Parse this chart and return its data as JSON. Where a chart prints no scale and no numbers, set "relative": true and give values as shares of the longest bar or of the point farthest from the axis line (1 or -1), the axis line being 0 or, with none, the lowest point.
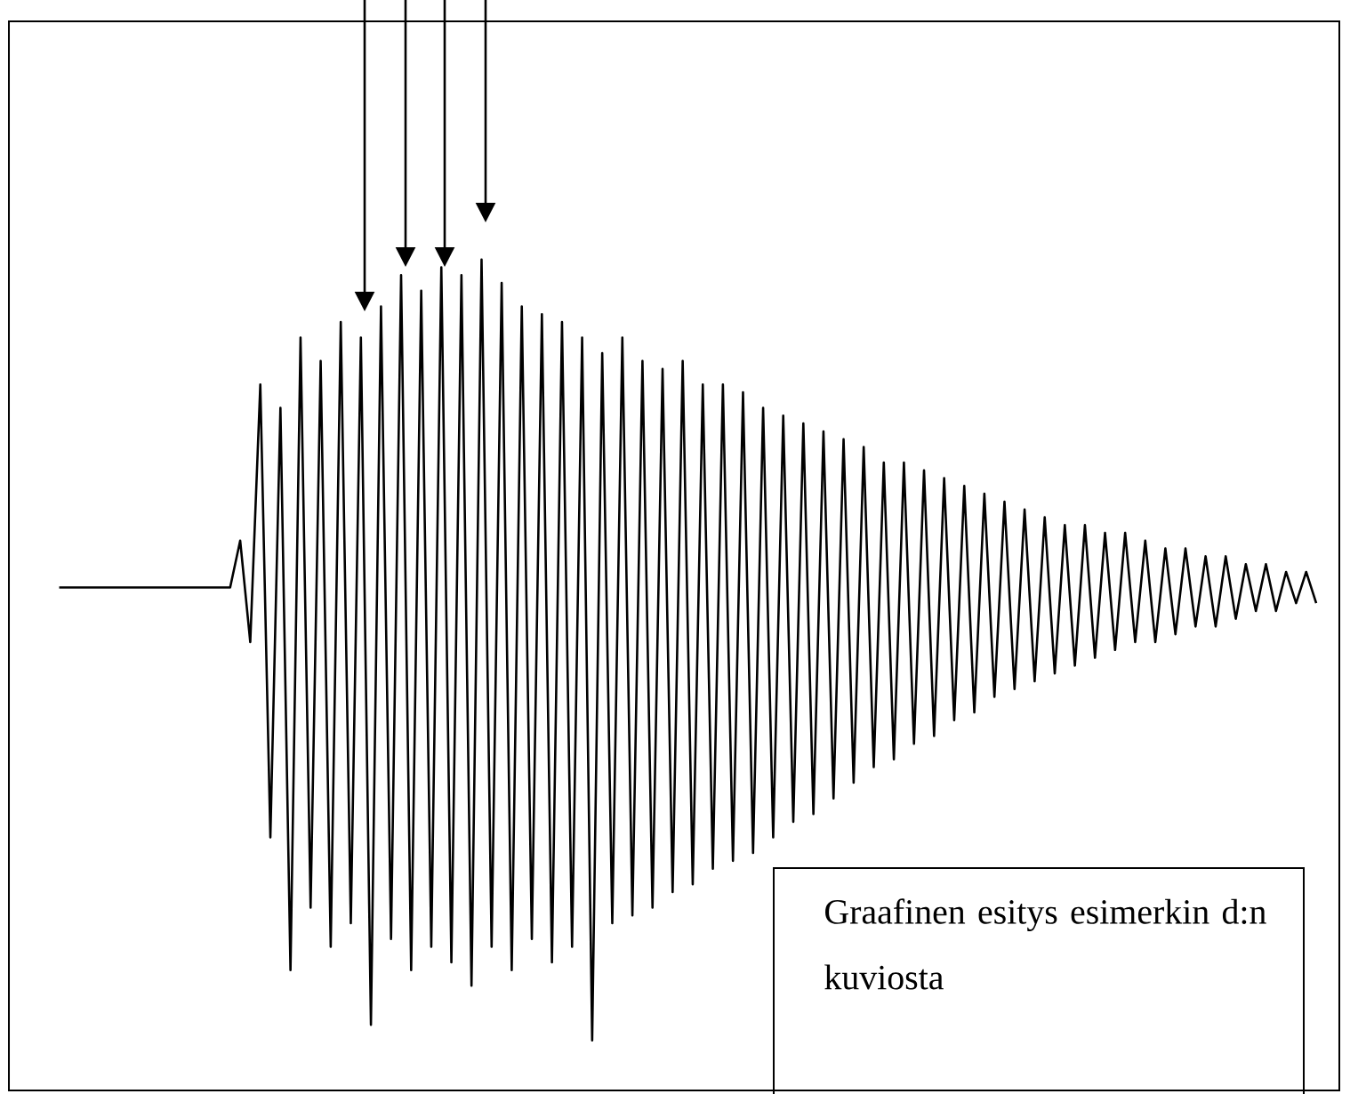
{
  "chart_data": {
    "type": "line",
    "relative": true,
    "color": "#000000",
    "categories": [
      null,
      null,
      null,
      null,
      null,
      null,
      null,
      null,
      null,
      null,
      null,
      null,
      null,
      null,
      null,
      null,
      null,
      null,
      null,
      null,
      null,
      null,
      null,
      null,
      null,
      null,
      null,
      null,
      null,
      null,
      null,
      null,
      null,
      null,
      null,
      null,
      null,
      null,
      null,
      null,
      null,
      null,
      null,
      null,
      null,
      null,
      null,
      null,
      null,
      null,
      null,
      null,
      null,
      null,
      null,
      null,
      null,
      null,
      null,
      null,
      null,
      null,
      null,
      null,
      null,
      null,
      null,
      null,
      null,
      null,
      null,
      null,
      null,
      null,
      null,
      null,
      null,
      null,
      null,
      null,
      null,
      null,
      null,
      null,
      null,
      null,
      null,
      null,
      null,
      null,
      null,
      null,
      null,
      null,
      null,
      null,
      null,
      null,
      null,
      null,
      null,
      null,
      null,
      null,
      null,
      null,
      null,
      null,
      null,
      null,
      null,
      null,
      null,
      null,
      null,
      null,
      null,
      null,
      null,
      null,
      null,
      null,
      null,
      null,
      null,
      null
    ],
    "values": [
      0.58,
      0.58,
      0.58,
      0.58,
      0.58,
      0.58,
      0.58,
      0.58,
      0.58,
      0.58,
      0.58,
      0.58,
      0.58,
      0.58,
      0.58,
      0.58,
      0.58,
      0.58,
      0.64,
      0.51,
      0.84,
      0.26,
      0.81,
      0.09,
      0.9,
      0.17,
      0.87,
      0.12,
      0.92,
      0.15,
      0.9,
      0.02,
      0.94,
      0.13,
      0.98,
      0.09,
      0.96,
      0.12,
      0.99,
      0.1,
      0.98,
      0.07,
      1.0,
      0.12,
      0.97,
      0.09,
      0.94,
      0.13,
      0.93,
      0.1,
      0.92,
      0.12,
      0.9,
      0.0,
      0.88,
      0.15,
      0.9,
      0.16,
      0.87,
      0.17,
      0.86,
      0.19,
      0.87,
      0.2,
      0.84,
      0.22,
      0.84,
      0.23,
      0.83,
      0.24,
      0.81,
      0.26,
      0.8,
      0.28,
      0.79,
      0.29,
      0.78,
      0.31,
      0.77,
      0.33,
      0.76,
      0.35,
      0.74,
      0.36,
      0.74,
      0.38,
      0.73,
      0.39,
      0.72,
      0.41,
      0.71,
      0.42,
      0.7,
      0.44,
      0.69,
      0.45,
      0.68,
      0.46,
      0.67,
      0.47,
      0.66,
      0.48,
      0.66,
      0.49,
      0.65,
      0.5,
      0.65,
      0.51,
      0.64,
      0.51,
      0.63,
      0.52,
      0.63,
      0.53,
      0.62,
      0.53,
      0.62,
      0.54,
      0.61,
      0.55,
      0.61,
      0.55,
      0.6,
      0.56,
      0.6,
      0.56
    ],
    "annotations": [
      "Graafinen esitys esimerkin d:n kuviosta"
    ]
  }
}
